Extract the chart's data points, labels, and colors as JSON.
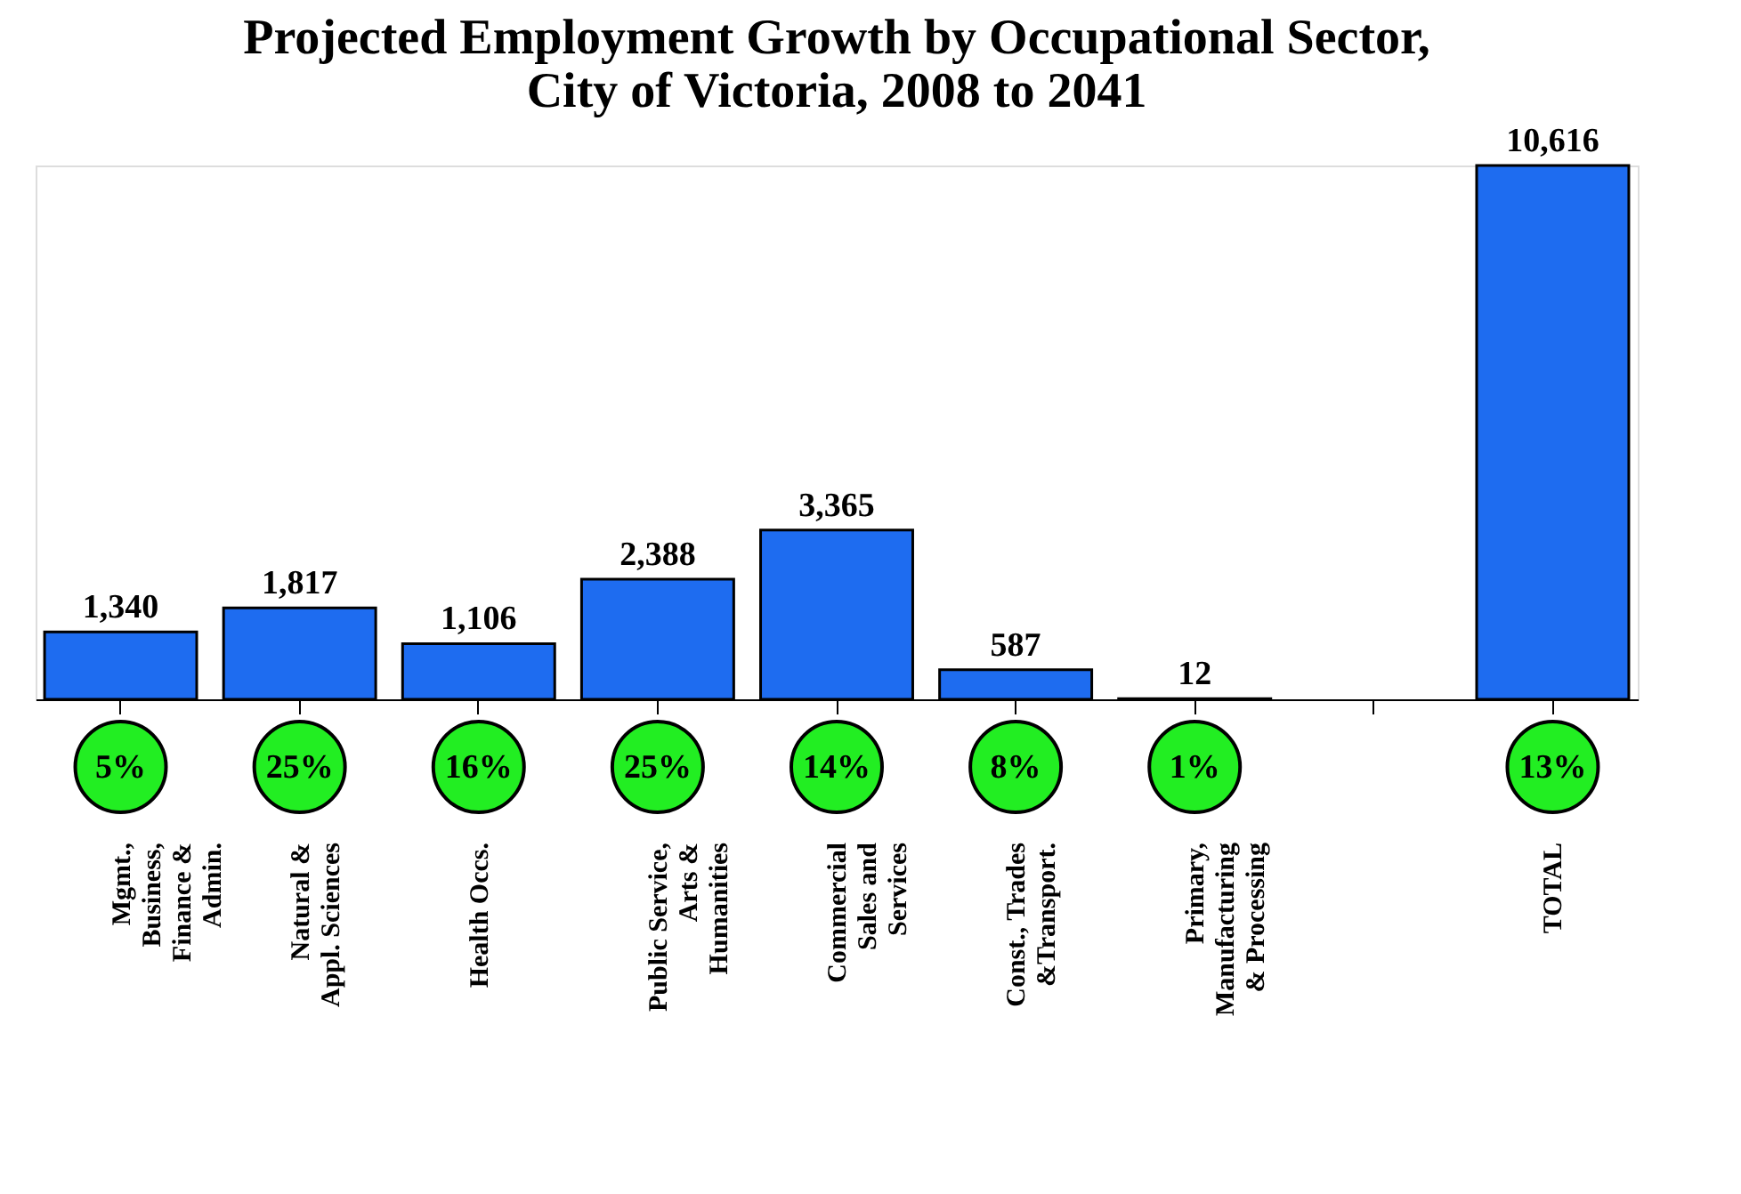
{
  "chart_data": {
    "type": "bar",
    "title": [
      "Projected Employment Growth by Occupational Sector,",
      "City of Victoria, 2008 to 2041"
    ],
    "categories": [
      "Mgmt.,\nBusiness,\nFinance &\nAdmin.",
      "Natural &\nAppl. Sciences",
      "Health Occs.",
      "Public Service,\nArts &\nHumanities",
      "Commercial\nSales and\nServices",
      "Const., Trades\n&Transport.",
      "Primary,\nManufacturing\n& Processing",
      null,
      "TOTAL"
    ],
    "values": [
      1340,
      1817,
      1106,
      2388,
      3365,
      587,
      12,
      null,
      10616
    ],
    "color": "#1e6cf0",
    "data_labels": true,
    "value_labels": [
      "1,340",
      "1,817",
      "1,106",
      "2,388",
      "3,365",
      "587",
      "12",
      null,
      "10,616"
    ],
    "annotations": [
      "5%",
      "25%",
      "16%",
      "25%",
      "14%",
      "8%",
      "1%",
      "13%"
    ],
    "grid": false
  }
}
